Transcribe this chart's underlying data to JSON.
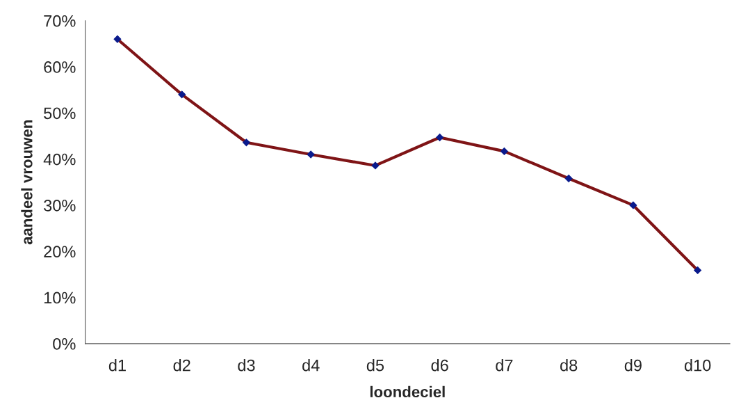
{
  "chart_data": {
    "type": "line",
    "xlabel": "loondeciel",
    "ylabel": "aandeel vrouwen",
    "categories": [
      "d1",
      "d2",
      "d3",
      "d4",
      "d5",
      "d6",
      "d7",
      "d8",
      "d9",
      "d10"
    ],
    "series": [
      {
        "color": "#7f1416",
        "values": [
          66,
          54,
          43.6,
          41,
          38.6,
          44.7,
          41.7,
          35.8,
          30,
          15.9
        ]
      }
    ],
    "ylim": [
      0,
      70
    ],
    "yticks": [
      {
        "value": 0,
        "label": "0%"
      },
      {
        "value": 10,
        "label": "10%"
      },
      {
        "value": 20,
        "label": "20%"
      },
      {
        "value": 30,
        "label": "30%"
      },
      {
        "value": 40,
        "label": "40%"
      },
      {
        "value": 50,
        "label": "50%"
      },
      {
        "value": 60,
        "label": "60%"
      },
      {
        "value": 70,
        "label": "70%"
      }
    ],
    "marker": "diamond",
    "line_style": "solid",
    "grid": false,
    "legend": false
  }
}
